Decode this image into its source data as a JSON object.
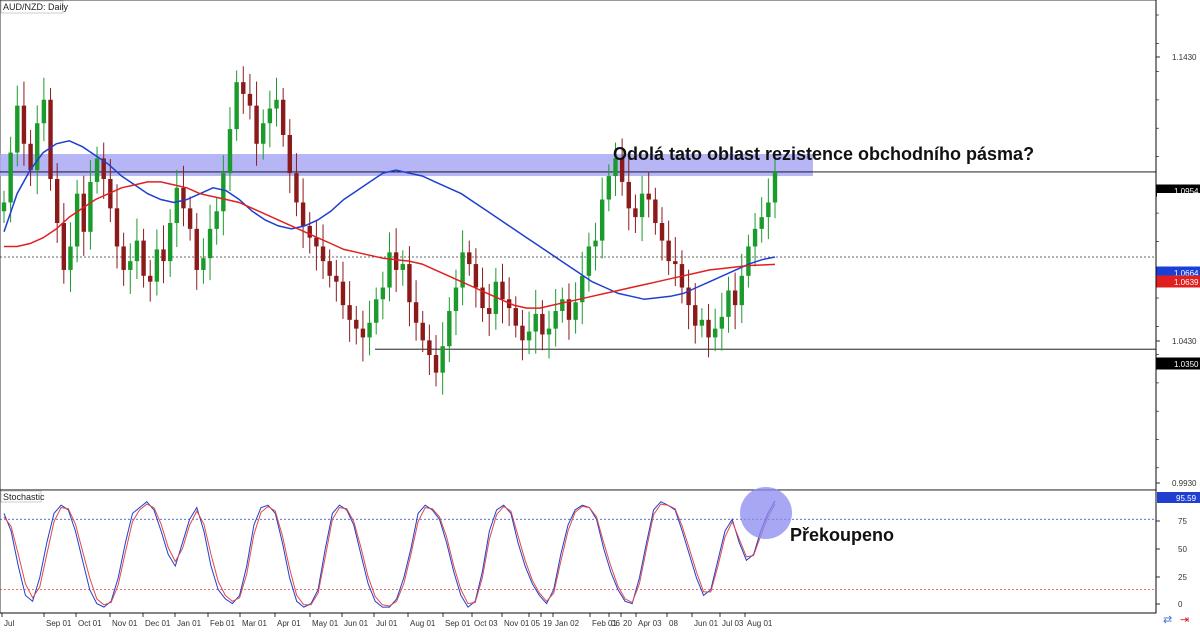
{
  "chart_data": [
    {
      "type": "candlestick",
      "title": "AUD/NZD: Daily",
      "x_tick_labels": [
        "Jul",
        "Sep 01",
        "Oct 01",
        "Nov 01",
        "Dec 01",
        "Jan 01",
        "Feb 01",
        "Mar 01",
        "Apr 01",
        "May 01",
        "Jun 01",
        "Jul 01",
        "Aug 01",
        "Sep 01",
        "Oct 03",
        "Nov 01",
        "05",
        "19",
        "Jan 02",
        "Feb 01",
        "06",
        "20",
        "Apr 03",
        "08",
        "Jun 01",
        "Jul 03",
        "Aug 01"
      ],
      "y_tick_labels": [
        "1.1430",
        "1.0430",
        "0.9930"
      ],
      "price_tags": [
        {
          "label": "1.0954",
          "value": 1.0954,
          "color": "#000000"
        },
        {
          "label": "1.0950",
          "value": 1.095,
          "color": "#ffffff"
        },
        {
          "label": "1.0664",
          "value": 1.0664,
          "color": "#1a3fd6"
        },
        {
          "label": "1.0639",
          "value": 1.0639,
          "color": "#e02020"
        },
        {
          "label": "1.0350",
          "value": 1.035,
          "color": "#000000"
        }
      ],
      "ylim": [
        0.987,
        1.154
      ],
      "resistance_zone": [
        1.094,
        1.1015
      ],
      "support_line": 1.035,
      "horizontal_dotted_level": 1.0664,
      "ma_colors": {
        "fast": "#1f3fd0",
        "slow": "#e02020"
      },
      "series": [
        {
          "name": "close",
          "values": [
            1.085,
            1.102,
            1.118,
            1.105,
            1.096,
            1.112,
            1.12,
            1.093,
            1.078,
            1.062,
            1.07,
            1.088,
            1.075,
            1.092,
            1.1,
            1.093,
            1.083,
            1.07,
            1.062,
            1.065,
            1.072,
            1.06,
            1.058,
            1.069,
            1.065,
            1.078,
            1.09,
            1.083,
            1.076,
            1.062,
            1.066,
            1.076,
            1.082,
            1.095,
            1.11,
            1.126,
            1.122,
            1.118,
            1.105,
            1.112,
            1.117,
            1.12,
            1.108,
            1.095,
            1.085,
            1.077,
            1.073,
            1.07,
            1.065,
            1.06,
            1.058,
            1.05,
            1.045,
            1.042,
            1.039,
            1.044,
            1.052,
            1.056,
            1.068,
            1.062,
            1.064,
            1.051,
            1.044,
            1.038,
            1.033,
            1.027,
            1.036,
            1.048,
            1.056,
            1.068,
            1.064,
            1.056,
            1.049,
            1.047,
            1.058,
            1.052,
            1.049,
            1.043,
            1.038,
            1.041,
            1.047,
            1.04,
            1.042,
            1.048,
            1.052,
            1.045,
            1.051,
            1.06,
            1.07,
            1.072,
            1.086,
            1.094,
            1.1,
            1.092,
            1.083,
            1.08,
            1.088,
            1.086,
            1.078,
            1.072,
            1.065,
            1.064,
            1.056,
            1.05,
            1.043,
            1.045,
            1.039,
            1.042,
            1.046,
            1.055,
            1.05,
            1.06,
            1.07,
            1.076,
            1.08,
            1.085,
            1.0954
          ]
        },
        {
          "name": "ma_fast",
          "values": [
            1.075,
            1.088,
            1.096,
            1.102,
            1.105,
            1.106,
            1.104,
            1.101,
            1.098,
            1.094,
            1.091,
            1.088,
            1.086,
            1.085,
            1.086,
            1.088,
            1.09,
            1.089,
            1.086,
            1.082,
            1.079,
            1.077,
            1.076,
            1.077,
            1.079,
            1.082,
            1.086,
            1.089,
            1.092,
            1.095,
            1.096,
            1.095,
            1.094,
            1.092,
            1.09,
            1.088,
            1.085,
            1.082,
            1.079,
            1.076,
            1.073,
            1.07,
            1.067,
            1.064,
            1.061,
            1.058,
            1.056,
            1.054,
            1.053,
            1.052,
            1.0525,
            1.053,
            1.054,
            1.056,
            1.058,
            1.06,
            1.062,
            1.064,
            1.0655,
            1.0664
          ]
        },
        {
          "name": "ma_slow",
          "values": [
            1.07,
            1.07,
            1.071,
            1.073,
            1.076,
            1.08,
            1.083,
            1.086,
            1.088,
            1.09,
            1.091,
            1.092,
            1.092,
            1.091,
            1.09,
            1.088,
            1.087,
            1.086,
            1.085,
            1.083,
            1.081,
            1.079,
            1.077,
            1.075,
            1.073,
            1.071,
            1.069,
            1.068,
            1.067,
            1.066,
            1.0655,
            1.065,
            1.064,
            1.062,
            1.06,
            1.058,
            1.056,
            1.054,
            1.052,
            1.05,
            1.049,
            1.049,
            1.05,
            1.051,
            1.052,
            1.053,
            1.054,
            1.055,
            1.056,
            1.057,
            1.058,
            1.059,
            1.06,
            1.061,
            1.062,
            1.0625,
            1.063,
            1.0635,
            1.0637,
            1.0639
          ]
        }
      ]
    },
    {
      "type": "line",
      "title": "Stochastic",
      "y_tick_labels": [
        "75",
        "50",
        "25",
        "0"
      ],
      "ylim": [
        0,
        105
      ],
      "overbought_level": 80,
      "oversold_level": 20,
      "current_value_label": "95.59",
      "current_value": 95.59,
      "series": [
        {
          "name": "%K",
          "color": "#1f3fd0",
          "values": [
            85,
            70,
            40,
            15,
            10,
            30,
            60,
            85,
            92,
            88,
            70,
            45,
            20,
            8,
            5,
            10,
            30,
            60,
            85,
            90,
            95,
            88,
            70,
            50,
            40,
            60,
            80,
            90,
            70,
            40,
            20,
            12,
            8,
            15,
            40,
            75,
            90,
            92,
            85,
            60,
            30,
            10,
            5,
            8,
            20,
            55,
            85,
            92,
            88,
            75,
            50,
            25,
            10,
            5,
            5,
            12,
            30,
            55,
            85,
            92,
            88,
            80,
            60,
            35,
            15,
            5,
            10,
            35,
            70,
            88,
            92,
            85,
            60,
            40,
            25,
            15,
            8,
            20,
            50,
            75,
            88,
            92,
            90,
            80,
            55,
            35,
            20,
            10,
            8,
            30,
            60,
            88,
            95,
            92,
            88,
            70,
            50,
            30,
            15,
            20,
            45,
            70,
            80,
            60,
            45,
            50,
            70,
            85,
            95.59
          ]
        },
        {
          "name": "%D",
          "color": "#e04a4a",
          "values": [
            82,
            74,
            50,
            25,
            13,
            22,
            50,
            78,
            90,
            89,
            76,
            53,
            30,
            12,
            7,
            9,
            24,
            52,
            78,
            88,
            93,
            90,
            76,
            56,
            44,
            55,
            75,
            87,
            76,
            50,
            27,
            15,
            10,
            13,
            33,
            67,
            86,
            91,
            87,
            66,
            38,
            15,
            7,
            7,
            17,
            48,
            80,
            90,
            89,
            78,
            56,
            31,
            14,
            7,
            6,
            10,
            25,
            50,
            78,
            90,
            89,
            82,
            65,
            40,
            20,
            8,
            9,
            30,
            63,
            84,
            91,
            87,
            66,
            45,
            28,
            17,
            10,
            17,
            44,
            70,
            86,
            91,
            90,
            82,
            60,
            40,
            23,
            12,
            9,
            25,
            55,
            84,
            93,
            92,
            89,
            74,
            55,
            35,
            18,
            18,
            40,
            65,
            78,
            63,
            48,
            49,
            66,
            82,
            93
          ]
        }
      ]
    }
  ],
  "annotations": {
    "resistance_question": "Odolá tato oblast rezistence obchodního pásma?",
    "overbought_label": "Překoupeno"
  },
  "colors": {
    "zone_fill": "#a9a9f5",
    "overbought_circle": "#8a8af0",
    "candle_up": "#1a9b2c",
    "candle_down": "#8b1a1a"
  }
}
